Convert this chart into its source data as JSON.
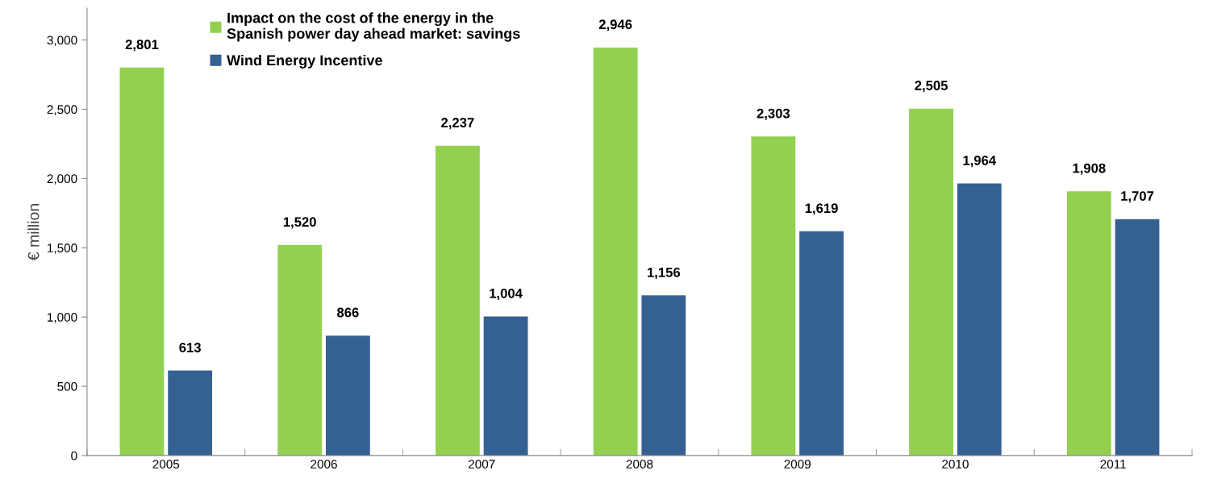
{
  "chart_data": {
    "type": "bar",
    "ylabel": "€ million",
    "categories": [
      "2005",
      "2006",
      "2007",
      "2008",
      "2009",
      "2010",
      "2011"
    ],
    "series": [
      {
        "name": "Impact on the cost of the energy in the\nSpanish power day ahead market: savings",
        "color": "#92d050",
        "values": [
          2801,
          1520,
          2237,
          2946,
          2303,
          2505,
          1908
        ],
        "value_labels": [
          "2,801",
          "1,520",
          "2,237",
          "2,946",
          "2,303",
          "2,505",
          "1,908"
        ]
      },
      {
        "name": "Wind Energy Incentive",
        "color": "#356192",
        "values": [
          613,
          866,
          1004,
          1156,
          1619,
          1964,
          1707
        ],
        "value_labels": [
          "613",
          "866",
          "1,004",
          "1,156",
          "1,619",
          "1,964",
          "1,707"
        ]
      }
    ],
    "ylim": [
      0,
      3230
    ],
    "yticks": [
      {
        "value": 0,
        "label": "0"
      },
      {
        "value": 500,
        "label": "500"
      },
      {
        "value": 1000,
        "label": "1,000"
      },
      {
        "value": 1500,
        "label": "1,500"
      },
      {
        "value": 2000,
        "label": "2,000"
      },
      {
        "value": 2500,
        "label": "2,500"
      },
      {
        "value": 3000,
        "label": "3,000"
      }
    ],
    "grid": false,
    "legend": "top left"
  }
}
